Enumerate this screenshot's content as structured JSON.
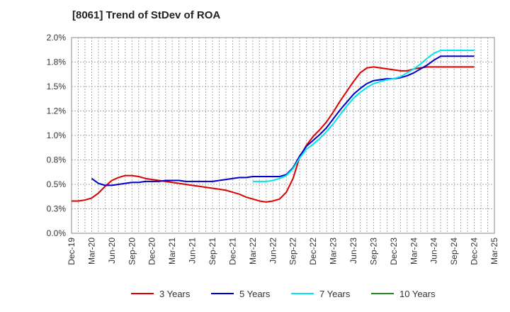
{
  "chart_data": {
    "type": "line",
    "title": "[8061]  Trend of StDev of ROA",
    "xlabel": "",
    "ylabel": "",
    "ylim": [
      0,
      2.0
    ],
    "y_ticks": [
      "0.0%",
      "0.3%",
      "0.5%",
      "0.8%",
      "1.0%",
      "1.2%",
      "1.5%",
      "1.8%",
      "2.0%"
    ],
    "x_ticks": [
      "Dec-19",
      "Mar-20",
      "Jun-20",
      "Sep-20",
      "Dec-20",
      "Mar-21",
      "Jun-21",
      "Sep-21",
      "Dec-21",
      "Mar-22",
      "Jun-22",
      "Sep-22",
      "Dec-22",
      "Mar-23",
      "Jun-23",
      "Sep-23",
      "Dec-23",
      "Mar-24",
      "Jun-24",
      "Sep-24",
      "Dec-24",
      "Mar-25"
    ],
    "grid": true,
    "legend_position": "bottom",
    "series": [
      {
        "name": "3 Years",
        "color": "#dd0000",
        "x": [
          0,
          1,
          2,
          3,
          4,
          5,
          6,
          7,
          8,
          9,
          10,
          11,
          12,
          13,
          14,
          15,
          16,
          17,
          18,
          19,
          20,
          21,
          22,
          23,
          24,
          25,
          26,
          27,
          28,
          29,
          30,
          31,
          32,
          33,
          34,
          35,
          36,
          37,
          38,
          39,
          40,
          41,
          42,
          43,
          44,
          45,
          46,
          47,
          48,
          49,
          50,
          51,
          52,
          53,
          54,
          55,
          56,
          57,
          58,
          59,
          60
        ],
        "y": [
          0.33,
          0.33,
          0.34,
          0.36,
          0.41,
          0.48,
          0.54,
          0.57,
          0.59,
          0.59,
          0.58,
          0.56,
          0.55,
          0.54,
          0.53,
          0.52,
          0.51,
          0.5,
          0.49,
          0.48,
          0.47,
          0.46,
          0.45,
          0.44,
          0.42,
          0.4,
          0.37,
          0.35,
          0.33,
          0.32,
          0.33,
          0.35,
          0.42,
          0.56,
          0.78,
          0.9,
          0.99,
          1.06,
          1.14,
          1.24,
          1.35,
          1.45,
          1.55,
          1.64,
          1.69,
          1.7,
          1.69,
          1.68,
          1.67,
          1.66,
          1.66,
          1.68,
          1.69,
          1.7,
          1.7,
          1.7,
          1.7,
          1.7,
          1.7,
          1.7,
          1.7
        ]
      },
      {
        "name": "5 Years",
        "color": "#0000cc",
        "x": [
          3,
          4,
          5,
          6,
          7,
          8,
          9,
          10,
          11,
          12,
          13,
          14,
          15,
          16,
          17,
          18,
          19,
          20,
          21,
          22,
          23,
          24,
          25,
          26,
          27,
          28,
          29,
          30,
          31,
          32,
          33,
          34,
          35,
          36,
          37,
          38,
          39,
          40,
          41,
          42,
          43,
          44,
          45,
          46,
          47,
          48,
          49,
          50,
          51,
          52,
          53,
          54,
          55,
          56,
          57,
          58,
          59,
          60
        ],
        "y": [
          0.56,
          0.51,
          0.49,
          0.49,
          0.5,
          0.51,
          0.52,
          0.52,
          0.53,
          0.53,
          0.53,
          0.54,
          0.54,
          0.54,
          0.53,
          0.53,
          0.53,
          0.53,
          0.53,
          0.54,
          0.55,
          0.56,
          0.57,
          0.57,
          0.58,
          0.58,
          0.58,
          0.58,
          0.58,
          0.6,
          0.67,
          0.79,
          0.89,
          0.95,
          1.01,
          1.08,
          1.17,
          1.26,
          1.34,
          1.42,
          1.48,
          1.53,
          1.56,
          1.57,
          1.58,
          1.58,
          1.59,
          1.61,
          1.64,
          1.68,
          1.72,
          1.77,
          1.81,
          1.81,
          1.81,
          1.81,
          1.81,
          1.81
        ]
      },
      {
        "name": "7 Years",
        "color": "#00e5ee",
        "x": [
          27,
          28,
          29,
          30,
          31,
          32,
          33,
          34,
          35,
          36,
          37,
          38,
          39,
          40,
          41,
          42,
          43,
          44,
          45,
          46,
          47,
          48,
          49,
          50,
          51,
          52,
          53,
          54,
          55,
          56,
          57,
          58,
          59,
          60
        ],
        "y": [
          0.53,
          0.53,
          0.53,
          0.54,
          0.56,
          0.59,
          0.66,
          0.77,
          0.86,
          0.91,
          0.97,
          1.04,
          1.12,
          1.21,
          1.3,
          1.38,
          1.44,
          1.49,
          1.53,
          1.55,
          1.57,
          1.58,
          1.6,
          1.64,
          1.68,
          1.73,
          1.79,
          1.84,
          1.87,
          1.87,
          1.87,
          1.87,
          1.87,
          1.87
        ]
      },
      {
        "name": "10 Years",
        "color": "#228b22",
        "x": [],
        "y": []
      }
    ]
  }
}
